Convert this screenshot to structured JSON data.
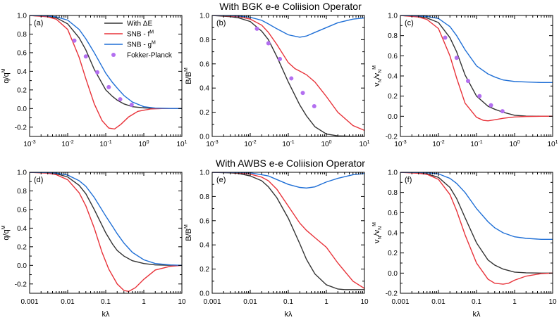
{
  "colors": {
    "with_dE": "#333333",
    "snb_f": "#e8333a",
    "snb_g": "#1f6fd6",
    "fokker_planck": "#b36ff0"
  },
  "rows": [
    {
      "title": "With BGK e-e Coliision Operator"
    },
    {
      "title": "With AWBS e-e Coliision Operator"
    }
  ],
  "legend": {
    "placement": "inside panel (a), top-right",
    "entries": [
      {
        "key": "with_dE",
        "label": "With ΔE",
        "kind": "line"
      },
      {
        "key": "snb_f",
        "label": "SNB - f",
        "sup": "M",
        "kind": "line"
      },
      {
        "key": "snb_g",
        "label": "SNB - g",
        "sup": "M",
        "kind": "line"
      },
      {
        "key": "fokker_planck",
        "label": "Fokker-Planck",
        "kind": "marker"
      }
    ]
  },
  "x_ticks": {
    "sci": [
      {
        "v": 0.001,
        "base": "10",
        "exp": "-3"
      },
      {
        "v": 0.01,
        "base": "10",
        "exp": "-2"
      },
      {
        "v": 0.1,
        "base": "10",
        "exp": "-1"
      },
      {
        "v": 1,
        "base": "10",
        "exp": "0"
      },
      {
        "v": 10,
        "base": "10",
        "exp": "1"
      }
    ],
    "decimal": [
      {
        "v": 0.001,
        "text": "0.001"
      },
      {
        "v": 0.01,
        "text": "0.01"
      },
      {
        "v": 0.1,
        "text": "0.1"
      },
      {
        "v": 1,
        "text": "1"
      },
      {
        "v": 10,
        "text": "10"
      }
    ]
  },
  "chart_data": [
    {
      "type": "line",
      "panel": "(a)",
      "xscale": "log",
      "xlim": [
        0.001,
        10
      ],
      "ylim": [
        -0.3,
        1.0
      ],
      "yticks": [
        "1.0",
        "0.8",
        "0.6",
        "0.4",
        "0.2",
        "0.0",
        "-0.2"
      ],
      "ytick_values": [
        1.0,
        0.8,
        0.6,
        0.4,
        0.2,
        0.0,
        -0.2
      ],
      "ylabel": {
        "num": "q",
        "num_sup": "",
        "den": "q",
        "den_sup": "M"
      },
      "xlabel": "",
      "show_legend": true,
      "series": [
        {
          "key": "with_dE",
          "x": [
            0.001,
            0.003,
            0.005,
            0.01,
            0.02,
            0.03,
            0.05,
            0.1,
            0.15,
            0.2,
            0.3,
            0.5,
            1,
            2,
            5,
            10
          ],
          "y": [
            1.0,
            0.99,
            0.975,
            0.91,
            0.76,
            0.63,
            0.42,
            0.2,
            0.13,
            0.09,
            0.05,
            0.02,
            0.007,
            0.002,
            0.0,
            0.0
          ]
        },
        {
          "key": "snb_f",
          "x": [
            0.001,
            0.003,
            0.005,
            0.01,
            0.02,
            0.03,
            0.05,
            0.08,
            0.12,
            0.17,
            0.25,
            0.4,
            0.7,
            1.5,
            3,
            10
          ],
          "y": [
            1.0,
            0.985,
            0.96,
            0.85,
            0.55,
            0.32,
            0.05,
            -0.13,
            -0.21,
            -0.22,
            -0.17,
            -0.09,
            -0.03,
            -0.005,
            0.0,
            0.0
          ]
        },
        {
          "key": "snb_g",
          "x": [
            0.001,
            0.003,
            0.005,
            0.01,
            0.02,
            0.03,
            0.05,
            0.1,
            0.15,
            0.2,
            0.3,
            0.5,
            1,
            2,
            5,
            10
          ],
          "y": [
            1.0,
            0.995,
            0.985,
            0.95,
            0.85,
            0.75,
            0.6,
            0.38,
            0.28,
            0.22,
            0.14,
            0.07,
            0.02,
            0.005,
            0.001,
            0.0
          ]
        },
        {
          "key": "fokker_planck",
          "marker": true,
          "x": [
            0.015,
            0.03,
            0.06,
            0.12,
            0.24,
            0.48
          ],
          "y": [
            0.73,
            0.56,
            0.39,
            0.23,
            0.1,
            0.04
          ]
        }
      ]
    },
    {
      "type": "line",
      "panel": "(b)",
      "xscale": "log",
      "xlim": [
        0.001,
        10
      ],
      "ylim": [
        0,
        1.0
      ],
      "yticks": [
        "1.0",
        "0.8",
        "0.6",
        "0.4",
        "0.2",
        "0.0"
      ],
      "ytick_values": [
        1.0,
        0.8,
        0.6,
        0.4,
        0.2,
        0.0
      ],
      "ylabel": {
        "num": "B",
        "num_sup": "",
        "den": "B",
        "den_sup": "M"
      },
      "xlabel": "",
      "show_legend": false,
      "series": [
        {
          "key": "with_dE",
          "x": [
            0.001,
            0.003,
            0.005,
            0.01,
            0.02,
            0.03,
            0.05,
            0.1,
            0.2,
            0.3,
            0.5,
            1,
            2,
            5,
            10
          ],
          "y": [
            1.0,
            0.99,
            0.98,
            0.95,
            0.87,
            0.8,
            0.66,
            0.45,
            0.26,
            0.17,
            0.08,
            0.02,
            0.005,
            0.001,
            0.0
          ]
        },
        {
          "key": "snb_f",
          "x": [
            0.001,
            0.003,
            0.005,
            0.01,
            0.02,
            0.03,
            0.05,
            0.1,
            0.15,
            0.2,
            0.3,
            0.5,
            1,
            2,
            5,
            10
          ],
          "y": [
            1.0,
            0.995,
            0.99,
            0.97,
            0.92,
            0.86,
            0.76,
            0.61,
            0.56,
            0.54,
            0.51,
            0.45,
            0.33,
            0.2,
            0.09,
            0.05
          ]
        },
        {
          "key": "snb_g",
          "x": [
            0.001,
            0.003,
            0.005,
            0.01,
            0.02,
            0.03,
            0.05,
            0.1,
            0.2,
            0.3,
            0.5,
            1,
            2,
            5,
            10
          ],
          "y": [
            1.0,
            0.998,
            0.995,
            0.985,
            0.96,
            0.93,
            0.89,
            0.84,
            0.82,
            0.83,
            0.86,
            0.9,
            0.94,
            0.97,
            0.98
          ]
        },
        {
          "key": "fokker_planck",
          "marker": true,
          "x": [
            0.015,
            0.03,
            0.06,
            0.12,
            0.24,
            0.48
          ],
          "y": [
            0.89,
            0.77,
            0.64,
            0.48,
            0.36,
            0.25
          ]
        }
      ]
    },
    {
      "type": "line",
      "panel": "(c)",
      "xscale": "log",
      "xlim": [
        0.001,
        10
      ],
      "ylim": [
        -0.2,
        1.0
      ],
      "yticks": [
        "1.0",
        "0.8",
        "0.6",
        "0.4",
        "0.2",
        "0.0",
        "-0.2"
      ],
      "ytick_values": [
        1.0,
        0.8,
        0.6,
        0.4,
        0.2,
        0.0,
        -0.2
      ],
      "ylabel": {
        "num": "v",
        "num_sub": "N",
        "den": "v",
        "den_sub": "N",
        "den_sup": "M"
      },
      "xlabel": "",
      "show_legend": false,
      "series": [
        {
          "key": "with_dE",
          "x": [
            0.001,
            0.003,
            0.005,
            0.01,
            0.02,
            0.03,
            0.05,
            0.1,
            0.2,
            0.3,
            0.5,
            1,
            2,
            5,
            10
          ],
          "y": [
            1.0,
            0.99,
            0.975,
            0.93,
            0.78,
            0.64,
            0.41,
            0.2,
            0.1,
            0.07,
            0.04,
            0.01,
            0.002,
            0.0,
            0.0
          ]
        },
        {
          "key": "snb_f",
          "x": [
            0.001,
            0.003,
            0.005,
            0.01,
            0.02,
            0.03,
            0.05,
            0.1,
            0.15,
            0.2,
            0.3,
            0.5,
            1,
            2,
            5,
            10
          ],
          "y": [
            1.0,
            0.985,
            0.96,
            0.87,
            0.6,
            0.38,
            0.13,
            -0.01,
            -0.04,
            -0.045,
            -0.035,
            -0.02,
            -0.007,
            -0.002,
            0.0,
            0.0
          ]
        },
        {
          "key": "snb_g",
          "x": [
            0.001,
            0.003,
            0.005,
            0.01,
            0.02,
            0.03,
            0.05,
            0.1,
            0.2,
            0.3,
            0.5,
            1,
            2,
            5,
            10
          ],
          "y": [
            1.0,
            0.995,
            0.99,
            0.97,
            0.89,
            0.8,
            0.66,
            0.5,
            0.42,
            0.39,
            0.36,
            0.345,
            0.34,
            0.335,
            0.335
          ]
        },
        {
          "key": "fokker_planck",
          "marker": true,
          "x": [
            0.015,
            0.03,
            0.06,
            0.12,
            0.24,
            0.48
          ],
          "y": [
            0.78,
            0.58,
            0.35,
            0.2,
            0.11,
            0.05
          ]
        }
      ]
    },
    {
      "type": "line",
      "panel": "(d)",
      "xscale": "log",
      "xlim": [
        0.001,
        10
      ],
      "ylim": [
        -0.3,
        1.0
      ],
      "yticks": [
        "1.0",
        "0.8",
        "0.6",
        "0.4",
        "0.2",
        "0.0",
        "-0.2"
      ],
      "ytick_values": [
        1.0,
        0.8,
        0.6,
        0.4,
        0.2,
        0.0,
        -0.2
      ],
      "ylabel": {
        "num": "q",
        "num_sup": "",
        "den": "q",
        "den_sup": "M"
      },
      "xlabel": "kλ",
      "show_legend": false,
      "series": [
        {
          "key": "with_dE",
          "x": [
            0.001,
            0.003,
            0.005,
            0.01,
            0.02,
            0.03,
            0.05,
            0.1,
            0.15,
            0.2,
            0.3,
            0.5,
            1,
            2,
            5,
            10
          ],
          "y": [
            1.0,
            0.995,
            0.985,
            0.95,
            0.86,
            0.77,
            0.6,
            0.35,
            0.23,
            0.16,
            0.1,
            0.05,
            0.02,
            0.005,
            0.001,
            0.0
          ]
        },
        {
          "key": "snb_f",
          "x": [
            0.001,
            0.003,
            0.005,
            0.01,
            0.02,
            0.03,
            0.05,
            0.08,
            0.12,
            0.2,
            0.3,
            0.4,
            0.6,
            1,
            2,
            5,
            10
          ],
          "y": [
            1.0,
            0.99,
            0.975,
            0.92,
            0.78,
            0.64,
            0.4,
            0.14,
            -0.04,
            -0.2,
            -0.27,
            -0.28,
            -0.24,
            -0.15,
            -0.05,
            -0.01,
            0.0
          ]
        },
        {
          "key": "snb_g",
          "x": [
            0.001,
            0.003,
            0.005,
            0.01,
            0.02,
            0.03,
            0.05,
            0.1,
            0.15,
            0.2,
            0.3,
            0.5,
            1,
            2,
            5,
            10
          ],
          "y": [
            1.0,
            0.997,
            0.992,
            0.97,
            0.91,
            0.85,
            0.73,
            0.53,
            0.42,
            0.34,
            0.24,
            0.14,
            0.06,
            0.02,
            0.005,
            0.0
          ]
        }
      ]
    },
    {
      "type": "line",
      "panel": "(e)",
      "xscale": "log",
      "xlim": [
        0.001,
        10
      ],
      "ylim": [
        0,
        1.0
      ],
      "yticks": [
        "1.0",
        "0.8",
        "0.6",
        "0.4",
        "0.2",
        "0.0"
      ],
      "ytick_values": [
        1.0,
        0.8,
        0.6,
        0.4,
        0.2,
        0.0
      ],
      "ylabel": {
        "num": "B",
        "num_sup": "",
        "den": "B",
        "den_sup": "M"
      },
      "xlabel": "kλ",
      "show_legend": false,
      "series": [
        {
          "key": "with_dE",
          "x": [
            0.001,
            0.003,
            0.005,
            0.01,
            0.02,
            0.03,
            0.05,
            0.1,
            0.2,
            0.3,
            0.5,
            1,
            2,
            3,
            5,
            10
          ],
          "y": [
            1.0,
            0.995,
            0.99,
            0.97,
            0.93,
            0.88,
            0.79,
            0.62,
            0.41,
            0.28,
            0.16,
            0.07,
            0.035,
            0.03,
            0.03,
            0.03
          ]
        },
        {
          "key": "snb_f",
          "x": [
            0.001,
            0.003,
            0.005,
            0.01,
            0.02,
            0.03,
            0.05,
            0.1,
            0.2,
            0.3,
            0.5,
            1,
            2,
            5,
            10
          ],
          "y": [
            1.0,
            0.998,
            0.995,
            0.985,
            0.96,
            0.93,
            0.86,
            0.72,
            0.58,
            0.52,
            0.46,
            0.38,
            0.25,
            0.1,
            0.04
          ]
        },
        {
          "key": "snb_g",
          "x": [
            0.001,
            0.003,
            0.005,
            0.01,
            0.02,
            0.03,
            0.05,
            0.1,
            0.2,
            0.3,
            0.5,
            1,
            2,
            5,
            10
          ],
          "y": [
            1.0,
            0.999,
            0.998,
            0.995,
            0.98,
            0.97,
            0.94,
            0.9,
            0.875,
            0.87,
            0.88,
            0.92,
            0.95,
            0.98,
            0.99
          ]
        }
      ]
    },
    {
      "type": "line",
      "panel": "(f)",
      "xscale": "log",
      "xlim": [
        0.001,
        10
      ],
      "ylim": [
        -0.2,
        1.0
      ],
      "yticks": [
        "1.0",
        "0.8",
        "0.6",
        "0.4",
        "0.2",
        "0.0",
        "-0.2"
      ],
      "ytick_values": [
        1.0,
        0.8,
        0.6,
        0.4,
        0.2,
        0.0,
        -0.2
      ],
      "ylabel": {
        "num": "v",
        "num_sub": "N",
        "den": "v",
        "den_sub": "N",
        "den_sup": "M"
      },
      "xlabel": "kλ",
      "show_legend": false,
      "series": [
        {
          "key": "with_dE",
          "x": [
            0.001,
            0.003,
            0.005,
            0.01,
            0.02,
            0.03,
            0.05,
            0.1,
            0.2,
            0.3,
            0.5,
            1,
            2,
            5,
            10
          ],
          "y": [
            1.0,
            0.995,
            0.985,
            0.95,
            0.85,
            0.74,
            0.55,
            0.3,
            0.13,
            0.08,
            0.04,
            0.01,
            0.003,
            0.0,
            0.0
          ]
        },
        {
          "key": "snb_f",
          "x": [
            0.001,
            0.003,
            0.005,
            0.01,
            0.02,
            0.03,
            0.05,
            0.1,
            0.2,
            0.3,
            0.5,
            0.7,
            1,
            2,
            5,
            10
          ],
          "y": [
            1.0,
            0.99,
            0.98,
            0.93,
            0.78,
            0.62,
            0.38,
            0.1,
            -0.06,
            -0.1,
            -0.11,
            -0.1,
            -0.07,
            -0.03,
            -0.005,
            0.0
          ]
        },
        {
          "key": "snb_g",
          "x": [
            0.001,
            0.003,
            0.005,
            0.01,
            0.02,
            0.03,
            0.05,
            0.1,
            0.2,
            0.3,
            0.5,
            1,
            2,
            5,
            10
          ],
          "y": [
            1.0,
            0.998,
            0.995,
            0.985,
            0.94,
            0.89,
            0.8,
            0.64,
            0.51,
            0.45,
            0.4,
            0.36,
            0.345,
            0.335,
            0.335
          ]
        }
      ]
    }
  ]
}
